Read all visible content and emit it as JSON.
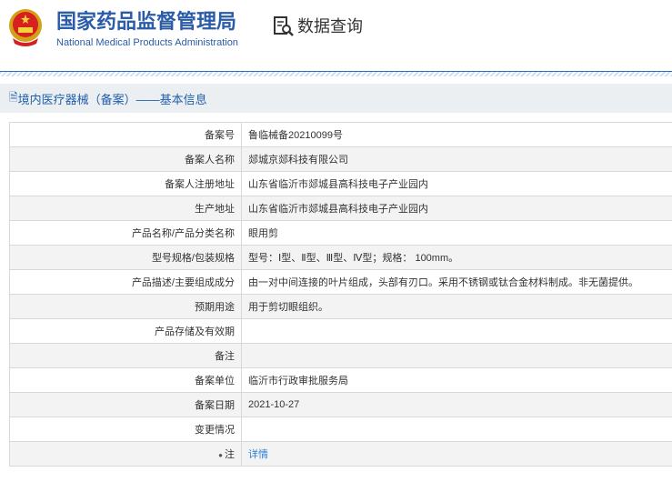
{
  "header": {
    "title_cn": "国家药品监督管理局",
    "title_en": "National Medical Products Administration",
    "query_label": "数据查询"
  },
  "breadcrumb": "境内医疗器械（备案）——基本信息",
  "rows": [
    {
      "label": "备案号",
      "value": "鲁临械备20210099号"
    },
    {
      "label": "备案人名称",
      "value": "郯城京郯科技有限公司"
    },
    {
      "label": "备案人注册地址",
      "value": "山东省临沂市郯城县高科技电子产业园内"
    },
    {
      "label": "生产地址",
      "value": "山东省临沂市郯城县高科技电子产业园内"
    },
    {
      "label": "产品名称/产品分类名称",
      "value": "眼用剪"
    },
    {
      "label": "型号规格/包装规格",
      "value": "型号：Ⅰ型、Ⅱ型、Ⅲ型、Ⅳ型；规格： 100mm。"
    },
    {
      "label": "产品描述/主要组成成分",
      "value": "由一对中间连接的叶片组成，头部有刃口。采用不锈钢或钛合金材料制成。非无菌提供。"
    },
    {
      "label": "预期用途",
      "value": "用于剪切眼组织。"
    },
    {
      "label": "产品存储及有效期",
      "value": ""
    },
    {
      "label": "备注",
      "value": ""
    },
    {
      "label": "备案单位",
      "value": "临沂市行政审批服务局"
    },
    {
      "label": "备案日期",
      "value": "2021-10-27"
    },
    {
      "label": "变更情况",
      "value": ""
    },
    {
      "label": "注",
      "value": "详情"
    }
  ]
}
